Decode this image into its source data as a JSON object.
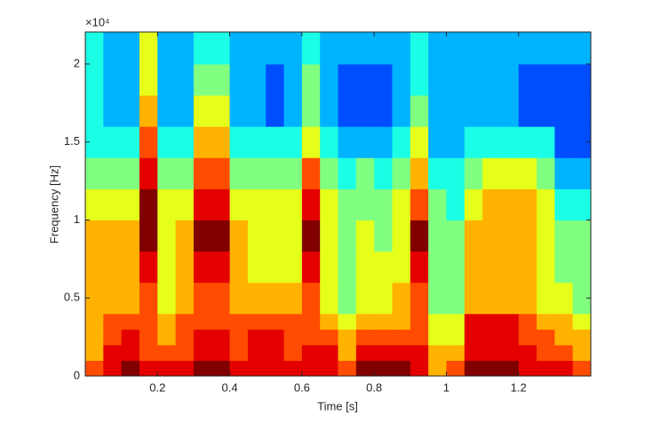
{
  "chart_data": {
    "type": "spectrogram",
    "xlabel": "Time [s]",
    "ylabel": "Frequency [Hz]",
    "y_exponent": "×10⁴",
    "xlim": [
      0,
      1.4
    ],
    "ylim": [
      0,
      22050
    ],
    "xticks": [
      0.2,
      0.4,
      0.6,
      0.8,
      1,
      1.2
    ],
    "yticks": [
      {
        "value": 0,
        "label": "0"
      },
      {
        "value": 5000,
        "label": "0.5"
      },
      {
        "value": 10000,
        "label": "1"
      },
      {
        "value": 15000,
        "label": "1.5"
      },
      {
        "value": 20000,
        "label": "2"
      }
    ],
    "colormap": "jet",
    "zlim": [
      0,
      10
    ],
    "xbins": [
      0,
      0.05,
      0.1,
      0.15,
      0.2,
      0.25,
      0.3,
      0.35,
      0.4,
      0.45,
      0.5,
      0.55,
      0.6,
      0.65,
      0.7,
      0.75,
      0.8,
      0.85,
      0.9,
      0.95,
      1,
      1.05,
      1.1,
      1.15,
      1.2,
      1.25,
      1.3,
      1.35,
      1.4
    ],
    "ybins": [
      0,
      1000,
      2000,
      3000,
      4000,
      6000,
      8000,
      10000,
      12000,
      14000,
      16000,
      18000,
      20000,
      22050
    ],
    "z": [
      [
        8,
        9,
        10,
        9,
        9,
        9,
        10,
        10,
        9,
        9,
        9,
        9,
        9,
        9,
        8,
        10,
        10,
        10,
        9,
        7,
        8,
        10,
        10,
        10,
        9,
        9,
        9,
        8
      ],
      [
        7,
        9,
        9,
        8,
        8,
        8,
        9,
        9,
        8,
        9,
        9,
        8,
        9,
        9,
        7,
        9,
        9,
        9,
        9,
        7,
        7,
        9,
        9,
        9,
        9,
        8,
        8,
        7
      ],
      [
        7,
        8,
        9,
        8,
        7,
        8,
        9,
        9,
        8,
        9,
        9,
        8,
        8,
        8,
        7,
        8,
        8,
        8,
        8,
        6,
        6,
        9,
        9,
        9,
        8,
        8,
        7,
        7
      ],
      [
        7,
        8,
        8,
        8,
        7,
        8,
        8,
        8,
        8,
        8,
        8,
        8,
        8,
        7,
        6,
        7,
        7,
        7,
        8,
        6,
        6,
        9,
        9,
        9,
        8,
        7,
        7,
        6
      ],
      [
        7,
        7,
        7,
        8,
        6,
        7,
        8,
        8,
        7,
        7,
        7,
        7,
        8,
        6,
        5,
        6,
        6,
        7,
        8,
        5,
        5,
        7,
        7,
        7,
        7,
        6,
        6,
        5
      ],
      [
        7,
        7,
        7,
        9,
        6,
        7,
        9,
        9,
        7,
        6,
        6,
        6,
        9,
        6,
        5,
        6,
        6,
        6,
        9,
        5,
        5,
        7,
        7,
        7,
        7,
        6,
        5,
        5
      ],
      [
        7,
        7,
        7,
        10,
        6,
        7,
        10,
        10,
        7,
        6,
        6,
        6,
        10,
        6,
        5,
        6,
        5,
        6,
        10,
        5,
        5,
        7,
        7,
        7,
        7,
        6,
        5,
        5
      ],
      [
        6,
        6,
        6,
        10,
        6,
        6,
        9,
        9,
        6,
        6,
        6,
        6,
        9,
        6,
        5,
        5,
        5,
        6,
        8,
        5,
        4,
        6,
        7,
        7,
        7,
        6,
        4,
        4
      ],
      [
        5,
        5,
        5,
        9,
        5,
        5,
        8,
        8,
        5,
        5,
        5,
        5,
        8,
        5,
        4,
        5,
        4,
        5,
        7,
        4,
        4,
        5,
        6,
        6,
        6,
        5,
        3,
        3
      ],
      [
        4,
        4,
        4,
        8,
        4,
        4,
        7,
        7,
        4,
        4,
        4,
        4,
        6,
        4,
        3,
        3,
        3,
        4,
        6,
        3,
        3,
        4,
        4,
        4,
        4,
        4,
        2,
        2
      ],
      [
        4,
        3,
        3,
        7,
        3,
        3,
        6,
        6,
        3,
        3,
        2,
        3,
        5,
        3,
        2,
        2,
        2,
        3,
        5,
        3,
        3,
        3,
        3,
        3,
        2,
        2,
        2,
        2
      ],
      [
        4,
        3,
        3,
        6,
        3,
        3,
        5,
        5,
        3,
        3,
        2,
        3,
        5,
        3,
        2,
        2,
        2,
        3,
        4,
        3,
        3,
        3,
        3,
        3,
        2,
        2,
        2,
        2
      ],
      [
        4,
        3,
        3,
        6,
        3,
        3,
        4,
        4,
        3,
        3,
        3,
        3,
        4,
        3,
        3,
        3,
        3,
        3,
        4,
        3,
        3,
        3,
        3,
        3,
        3,
        3,
        3,
        3
      ]
    ]
  }
}
